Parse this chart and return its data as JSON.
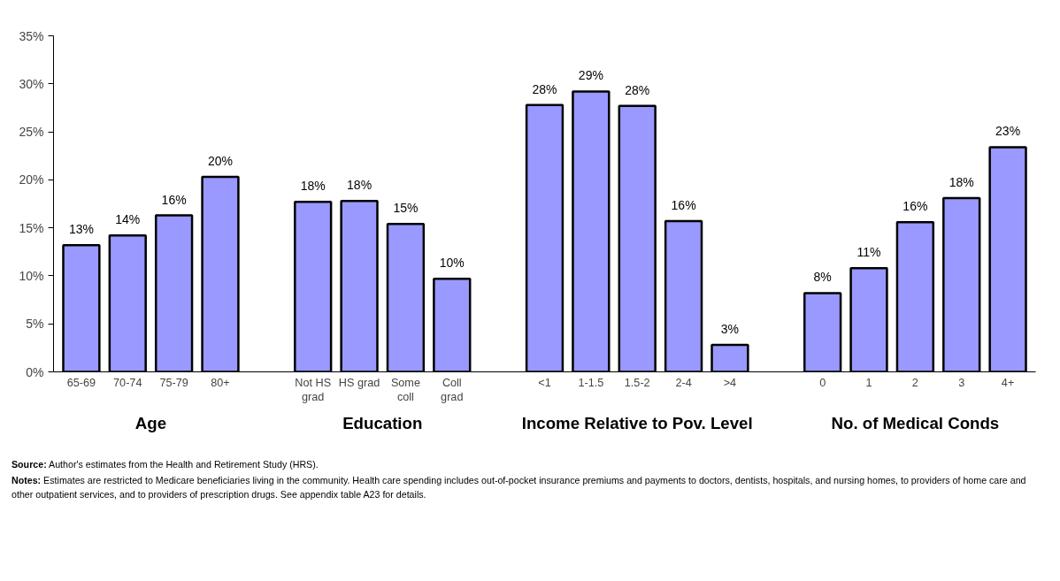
{
  "chart_data": {
    "type": "bar",
    "categories": [
      "65-69",
      "70-74",
      "75-79",
      "80+",
      null,
      "Not HS\ngrad",
      "HS grad",
      "Some\ncoll",
      "Coll\ngrad",
      null,
      "<1",
      "1-1.5",
      "1.5-2",
      "2-4",
      ">4",
      null,
      "0",
      "1",
      "2",
      "3",
      "4+"
    ],
    "values": [
      13.2,
      14.2,
      16.3,
      20.3,
      null,
      17.7,
      17.8,
      15.4,
      9.7,
      null,
      27.8,
      29.2,
      27.7,
      15.7,
      2.8,
      null,
      8.2,
      10.8,
      15.6,
      18.1,
      23.4
    ],
    "value_labels": [
      "13%",
      "14%",
      "16%",
      "20%",
      null,
      "18%",
      "18%",
      "15%",
      "10%",
      null,
      "28%",
      "29%",
      "28%",
      "16%",
      "3%",
      null,
      "8%",
      "11%",
      "16%",
      "18%",
      "23%"
    ],
    "color": "#9999ff",
    "ylim": [
      0,
      35
    ],
    "yticks": [
      {
        "value": 0,
        "label": "0%"
      },
      {
        "value": 5,
        "label": "5%"
      },
      {
        "value": 10,
        "label": "10%"
      },
      {
        "value": 15,
        "label": "15%"
      },
      {
        "value": 20,
        "label": "20%"
      },
      {
        "value": 25,
        "label": "25%"
      },
      {
        "value": 30,
        "label": "30%"
      },
      {
        "value": 35,
        "label": "35%"
      }
    ],
    "grid": false,
    "annotations": [
      "Age",
      "Education",
      "Income Relative to Pov. Level",
      "No. of Medical Conds",
      "Source:  Author's estimates from the Health and Retirement Study (HRS).",
      "Notes:  Estimates are restricted to Medicare beneficiaries living in the community.  Health care spending includes out-of-pocket insurance premiums and payments to doctors, dentists, hospitals, and nursing homes, to providers of home care and other outpatient services, and to providers of prescription drugs.  See appendix table A23 for details."
    ]
  }
}
